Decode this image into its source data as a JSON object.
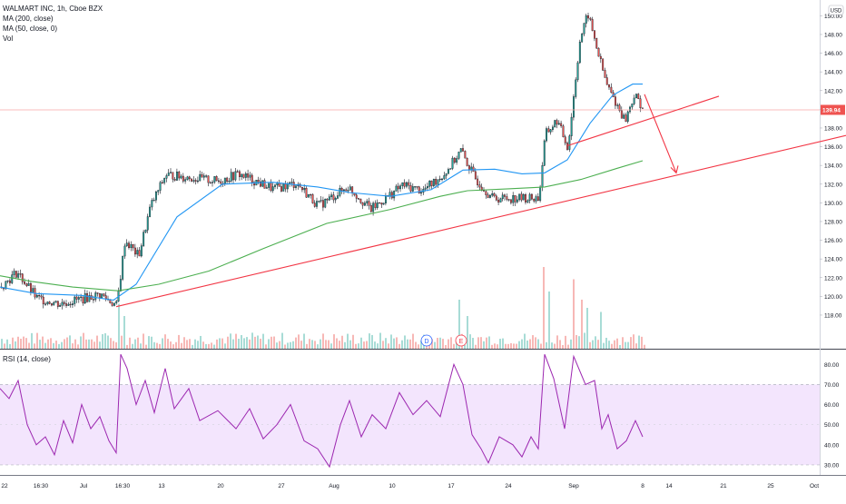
{
  "legend": {
    "symbol": "WALMART INC, 1h, Cboe BZX",
    "ma200": "MA (200, close)",
    "ma50": "MA (50, close, 0)",
    "vol": "Vol",
    "rsi": "RSI (14, close)"
  },
  "currency": "USD",
  "last_price_label": "139.94",
  "event_markers": [
    "D",
    "E"
  ],
  "colors": {
    "up": "#26a69a",
    "down": "#ef5350",
    "ma50_line": "#2196f3",
    "ma200_line": "#4caf50",
    "trend": "#f23645",
    "rsi_line": "#9c27b0",
    "rsi_band": "#f3e5fd"
  },
  "chart_data": [
    {
      "type": "candlestick",
      "title": "WALMART INC, 1h, Cboe BZX",
      "ylim": [
        116.8,
        151.5
      ],
      "y_ticks": [
        "150.00",
        "148.00",
        "146.00",
        "144.00",
        "142.00",
        "140.00",
        "138.00",
        "136.00",
        "134.00",
        "132.00",
        "130.00",
        "128.00",
        "126.00",
        "124.00",
        "122.00",
        "120.00",
        "118.00"
      ],
      "x_ticks": [
        "22",
        "16:30",
        "Jul",
        "16:30",
        "13",
        "20",
        "27",
        "Aug",
        "10",
        "17",
        "24",
        "Sep",
        "8",
        "14",
        "21",
        "25",
        "Oct"
      ],
      "last_price": 139.94,
      "ohlc_waypoints": [
        {
          "x": 0,
          "close": 121
        },
        {
          "x": 18,
          "close": 122.6
        },
        {
          "x": 40,
          "close": 119.8
        },
        {
          "x": 65,
          "close": 119.2
        },
        {
          "x": 110,
          "close": 120.2
        },
        {
          "x": 128,
          "close": 119
        },
        {
          "x": 137,
          "close": 126
        },
        {
          "x": 152,
          "close": 124.3
        },
        {
          "x": 165,
          "close": 129.6
        },
        {
          "x": 182,
          "close": 133
        },
        {
          "x": 208,
          "close": 132.7
        },
        {
          "x": 240,
          "close": 132.3
        },
        {
          "x": 262,
          "close": 133.1
        },
        {
          "x": 300,
          "close": 131.5
        },
        {
          "x": 326,
          "close": 132.1
        },
        {
          "x": 350,
          "close": 129.7
        },
        {
          "x": 383,
          "close": 131.7
        },
        {
          "x": 408,
          "close": 129.3
        },
        {
          "x": 443,
          "close": 131.9
        },
        {
          "x": 465,
          "close": 131.3
        },
        {
          "x": 490,
          "close": 133.2
        },
        {
          "x": 507,
          "close": 135.6
        },
        {
          "x": 522,
          "close": 132.7
        },
        {
          "x": 542,
          "close": 130.5
        },
        {
          "x": 570,
          "close": 130.5
        },
        {
          "x": 593,
          "close": 130.5
        },
        {
          "x": 600,
          "close": 137.3
        },
        {
          "x": 613,
          "close": 138.8
        },
        {
          "x": 625,
          "close": 135.9
        },
        {
          "x": 638,
          "close": 147.3
        },
        {
          "x": 647,
          "close": 150.2
        },
        {
          "x": 657,
          "close": 146.5
        },
        {
          "x": 667,
          "close": 142.8
        },
        {
          "x": 676,
          "close": 141
        },
        {
          "x": 688,
          "close": 138.8
        },
        {
          "x": 698,
          "close": 141.5
        },
        {
          "x": 710,
          "close": 139.9
        }
      ],
      "ma50": [
        {
          "x": 0,
          "close": 121
        },
        {
          "x": 40,
          "close": 120.3
        },
        {
          "x": 90,
          "close": 120.1
        },
        {
          "x": 125,
          "close": 119.6
        },
        {
          "x": 150,
          "close": 121.3
        },
        {
          "x": 195,
          "close": 128.5
        },
        {
          "x": 245,
          "close": 132
        },
        {
          "x": 300,
          "close": 132.2
        },
        {
          "x": 350,
          "close": 131.7
        },
        {
          "x": 385,
          "close": 131.1
        },
        {
          "x": 430,
          "close": 130.7
        },
        {
          "x": 475,
          "close": 131.4
        },
        {
          "x": 510,
          "close": 133.5
        },
        {
          "x": 545,
          "close": 133.6
        },
        {
          "x": 575,
          "close": 133.1
        },
        {
          "x": 600,
          "close": 133.2
        },
        {
          "x": 625,
          "close": 134.6
        },
        {
          "x": 650,
          "close": 138.5
        },
        {
          "x": 675,
          "close": 141.5
        },
        {
          "x": 697,
          "close": 142.7
        },
        {
          "x": 708,
          "close": 142.7
        }
      ],
      "ma200": [
        {
          "x": 0,
          "close": 122.2
        },
        {
          "x": 35,
          "close": 121.6
        },
        {
          "x": 80,
          "close": 121
        },
        {
          "x": 130,
          "close": 120.6
        },
        {
          "x": 175,
          "close": 121.3
        },
        {
          "x": 230,
          "close": 122.7
        },
        {
          "x": 290,
          "close": 125.1
        },
        {
          "x": 360,
          "close": 127.8
        },
        {
          "x": 430,
          "close": 129.3
        },
        {
          "x": 485,
          "close": 130.7
        },
        {
          "x": 515,
          "close": 131.3
        },
        {
          "x": 560,
          "close": 131.5
        },
        {
          "x": 600,
          "close": 131.7
        },
        {
          "x": 640,
          "close": 132.5
        },
        {
          "x": 680,
          "close": 133.7
        },
        {
          "x": 708,
          "close": 134.5
        }
      ],
      "trend_lines": [
        {
          "x1": 128,
          "y1": 118.9,
          "x2": 932,
          "y2": 137.2
        },
        {
          "x1": 625,
          "y1": 136.1,
          "x2": 792,
          "y2": 141.4
        },
        {
          "x1": 710,
          "y1": 141.6,
          "x2": 745,
          "y2": 133.2,
          "arrow": true
        }
      ],
      "horizontal_line": 139.94
    },
    {
      "type": "bar",
      "title": "Vol",
      "note": "volume histogram, relative heights",
      "spikes": [
        {
          "x": 130,
          "rel": 0.55
        },
        {
          "x": 135,
          "rel": 0.4
        },
        {
          "x": 506,
          "rel": 0.6
        },
        {
          "x": 515,
          "rel": 0.4
        },
        {
          "x": 597,
          "rel": 1.0
        },
        {
          "x": 604,
          "rel": 0.7
        },
        {
          "x": 632,
          "rel": 0.85
        },
        {
          "x": 640,
          "rel": 0.6
        },
        {
          "x": 645,
          "rel": 0.5
        },
        {
          "x": 660,
          "rel": 0.45
        }
      ]
    },
    {
      "type": "line",
      "title": "RSI (14, close)",
      "ylim": [
        25,
        86
      ],
      "y_ticks": [
        "80.00",
        "70.00",
        "60.00",
        "50.00",
        "40.00",
        "30.00"
      ],
      "band": [
        30,
        70
      ],
      "values": [
        {
          "x": 0,
          "v": 68
        },
        {
          "x": 10,
          "v": 63
        },
        {
          "x": 20,
          "v": 72
        },
        {
          "x": 30,
          "v": 50
        },
        {
          "x": 40,
          "v": 40
        },
        {
          "x": 50,
          "v": 44
        },
        {
          "x": 60,
          "v": 35
        },
        {
          "x": 70,
          "v": 52
        },
        {
          "x": 80,
          "v": 41
        },
        {
          "x": 90,
          "v": 60
        },
        {
          "x": 100,
          "v": 48
        },
        {
          "x": 110,
          "v": 54
        },
        {
          "x": 120,
          "v": 42
        },
        {
          "x": 128,
          "v": 36
        },
        {
          "x": 133,
          "v": 85
        },
        {
          "x": 140,
          "v": 78
        },
        {
          "x": 150,
          "v": 60
        },
        {
          "x": 160,
          "v": 72
        },
        {
          "x": 170,
          "v": 56
        },
        {
          "x": 182,
          "v": 78
        },
        {
          "x": 192,
          "v": 58
        },
        {
          "x": 208,
          "v": 68
        },
        {
          "x": 220,
          "v": 52
        },
        {
          "x": 240,
          "v": 57
        },
        {
          "x": 260,
          "v": 48
        },
        {
          "x": 275,
          "v": 58
        },
        {
          "x": 290,
          "v": 43
        },
        {
          "x": 305,
          "v": 50
        },
        {
          "x": 320,
          "v": 60
        },
        {
          "x": 335,
          "v": 42
        },
        {
          "x": 350,
          "v": 38
        },
        {
          "x": 363,
          "v": 29
        },
        {
          "x": 375,
          "v": 50
        },
        {
          "x": 385,
          "v": 62
        },
        {
          "x": 398,
          "v": 44
        },
        {
          "x": 410,
          "v": 55
        },
        {
          "x": 425,
          "v": 48
        },
        {
          "x": 440,
          "v": 66
        },
        {
          "x": 455,
          "v": 55
        },
        {
          "x": 470,
          "v": 62
        },
        {
          "x": 485,
          "v": 54
        },
        {
          "x": 500,
          "v": 80
        },
        {
          "x": 510,
          "v": 70
        },
        {
          "x": 520,
          "v": 45
        },
        {
          "x": 530,
          "v": 38
        },
        {
          "x": 538,
          "v": 31
        },
        {
          "x": 550,
          "v": 44
        },
        {
          "x": 565,
          "v": 40
        },
        {
          "x": 575,
          "v": 34
        },
        {
          "x": 585,
          "v": 44
        },
        {
          "x": 593,
          "v": 38
        },
        {
          "x": 600,
          "v": 85
        },
        {
          "x": 610,
          "v": 73
        },
        {
          "x": 622,
          "v": 48
        },
        {
          "x": 632,
          "v": 84
        },
        {
          "x": 645,
          "v": 70
        },
        {
          "x": 655,
          "v": 72
        },
        {
          "x": 663,
          "v": 48
        },
        {
          "x": 670,
          "v": 55
        },
        {
          "x": 680,
          "v": 38
        },
        {
          "x": 690,
          "v": 42
        },
        {
          "x": 700,
          "v": 52
        },
        {
          "x": 708,
          "v": 44
        }
      ]
    }
  ]
}
